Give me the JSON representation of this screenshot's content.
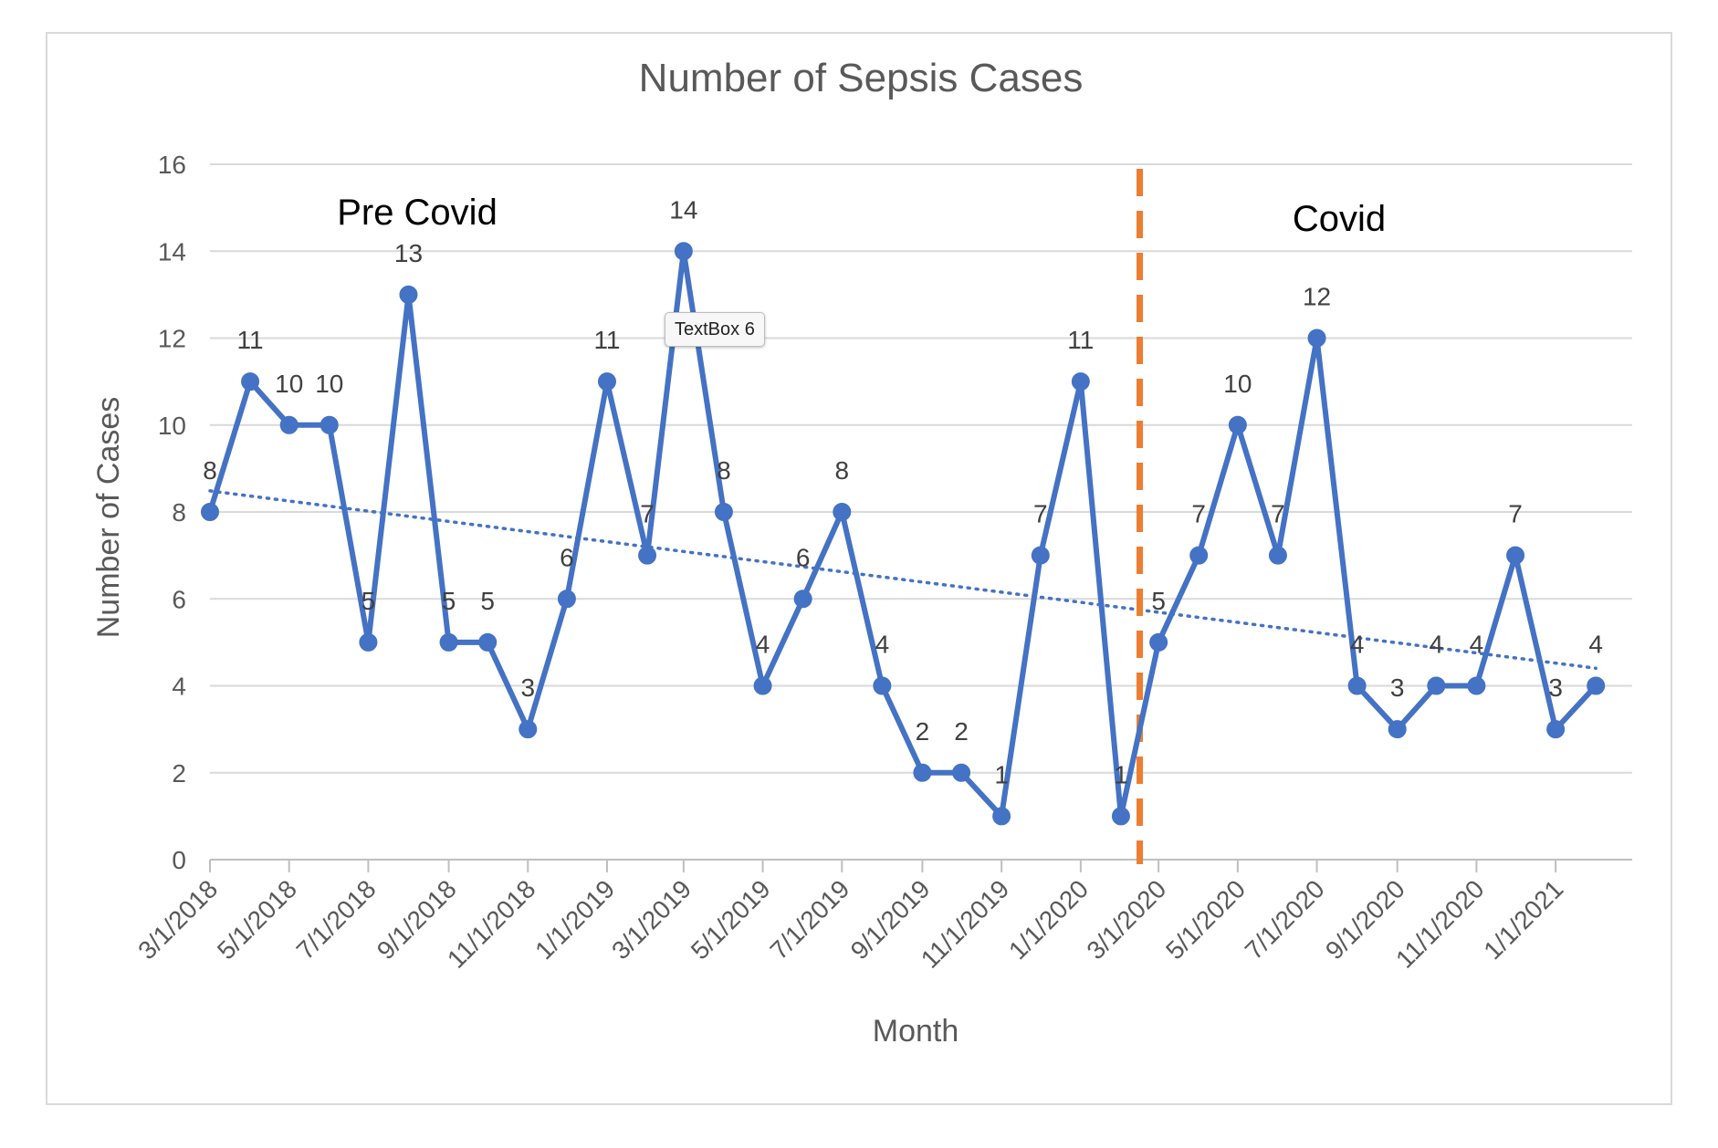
{
  "chart_data": {
    "type": "line",
    "title": "Number of Sepsis Cases",
    "xlabel": "Month",
    "ylabel": "Number of Cases",
    "ylim": [
      0,
      16
    ],
    "yticks": [
      0,
      2,
      4,
      6,
      8,
      10,
      12,
      14,
      16
    ],
    "grid": true,
    "legend": "none",
    "x_tick_labels": [
      "3/1/2018",
      "5/1/2018",
      "7/1/2018",
      "9/1/2018",
      "11/1/2018",
      "1/1/2019",
      "3/1/2019",
      "5/1/2019",
      "7/1/2019",
      "9/1/2019",
      "11/1/2019",
      "1/1/2020",
      "3/1/2020",
      "5/1/2020",
      "7/1/2020",
      "9/1/2020",
      "11/1/2020",
      "1/1/2021"
    ],
    "x": [
      "3/1/2018",
      "4/1/2018",
      "5/1/2018",
      "6/1/2018",
      "7/1/2018",
      "8/1/2018",
      "9/1/2018",
      "10/1/2018",
      "11/1/2018",
      "12/1/2018",
      "1/1/2019",
      "2/1/2019",
      "3/1/2019",
      "4/1/2019",
      "5/1/2019",
      "6/1/2019",
      "7/1/2019",
      "8/1/2019",
      "9/1/2019",
      "10/1/2019",
      "11/1/2019",
      "12/1/2019",
      "1/1/2020",
      "2/1/2020",
      "3/1/2020",
      "4/1/2020",
      "5/1/2020",
      "6/1/2020",
      "7/1/2020",
      "8/1/2020",
      "9/1/2020",
      "10/1/2020",
      "11/1/2020",
      "12/1/2020",
      "1/1/2021",
      "2/1/2021"
    ],
    "series": [
      {
        "values": [
          8,
          11,
          10,
          10,
          5,
          13,
          5,
          5,
          3,
          6,
          11,
          7,
          14,
          8,
          4,
          6,
          8,
          4,
          2,
          2,
          1,
          7,
          11,
          1,
          5,
          7,
          10,
          7,
          12,
          4,
          3,
          4,
          4,
          7,
          3,
          4
        ],
        "color": "#4472C4"
      }
    ],
    "trendline": {
      "type": "linear",
      "style": "dotted",
      "color": "#4472C4"
    },
    "annotations": [
      {
        "text": "Pre Covid"
      },
      {
        "text": "Covid"
      }
    ],
    "divider": {
      "between": [
        "2/1/2020",
        "3/1/2020"
      ],
      "style": "dashed",
      "color": "#ED7D31"
    }
  },
  "overlay": {
    "textbox_label": "TextBox 6"
  }
}
